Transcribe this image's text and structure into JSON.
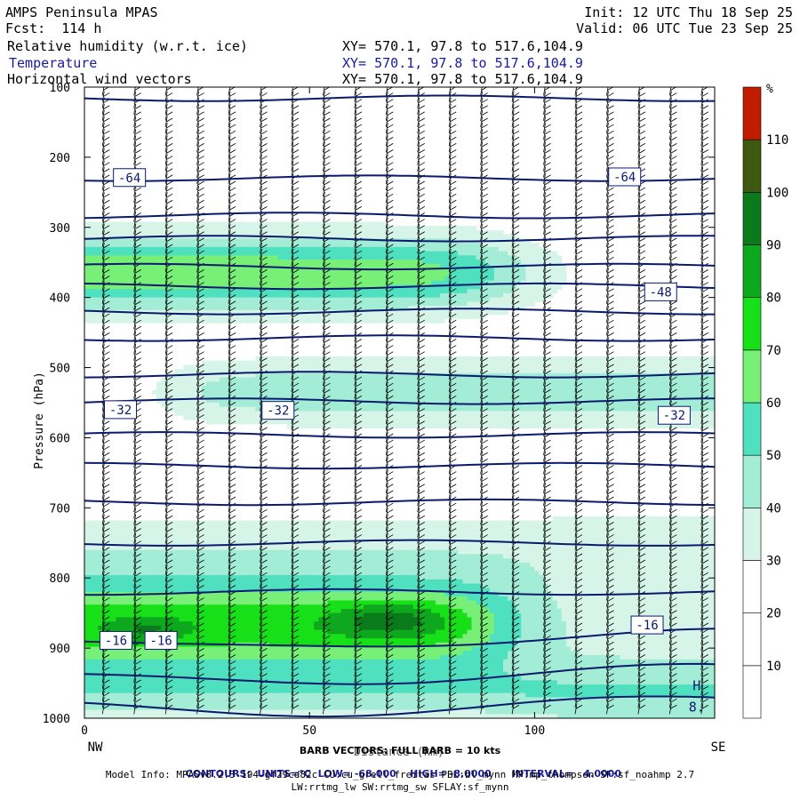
{
  "header": {
    "model": "AMPS Peninsula MPAS",
    "forecast": "Fcst:  114 h",
    "init": "Init: 12 UTC Thu 18 Sep 25",
    "valid": "Valid: 06 UTC Tue 23 Sep 25",
    "field1": "Relative humidity (w.r.t. ice)",
    "field2": "Temperature",
    "field3": "Horizontal wind vectors",
    "xy1": "XY= 570.1, 97.8 to 517.6,104.9",
    "xy2": "XY= 570.1, 97.8 to 517.6,104.9",
    "xy3": "XY= 570.1, 97.8 to 517.6,104.9"
  },
  "colors": {
    "temperature_contour": "#0a1a6e",
    "rh_bins": [
      "#ffffff",
      "#ffffff",
      "#ffffff",
      "#d6f5e8",
      "#a3ecd6",
      "#4fe0c0",
      "#78f078",
      "#18e018",
      "#0ea81e",
      "#0b7a1a",
      "#3e5a10",
      "#c01c00"
    ]
  },
  "chart_data": {
    "type": "heatmap",
    "title": "",
    "xlabel": "Distance (km)",
    "ylabel": "Pressure (hPa)",
    "xlim": [
      0,
      140
    ],
    "ylim": [
      1000,
      100
    ],
    "x_ticks": [
      "0",
      "50",
      "100"
    ],
    "y_ticks": [
      "100",
      "200",
      "300",
      "400",
      "500",
      "600",
      "700",
      "800",
      "900",
      "1000"
    ],
    "x_ends": [
      "NW",
      "SE"
    ],
    "colorbar": {
      "unit": "%",
      "levels": [
        "10",
        "20",
        "30",
        "40",
        "50",
        "60",
        "70",
        "80",
        "90",
        "100",
        "110"
      ]
    },
    "temperature_labels": [
      {
        "text": "-64",
        "x": 10,
        "p": 229
      },
      {
        "text": "-64",
        "x": 120,
        "p": 228
      },
      {
        "text": "-48",
        "x": 128,
        "p": 392
      },
      {
        "text": "-32",
        "x": 8,
        "p": 560
      },
      {
        "text": "-32",
        "x": 43,
        "p": 561
      },
      {
        "text": "-32",
        "x": 131,
        "p": 568
      },
      {
        "text": "-16",
        "x": 7,
        "p": 889
      },
      {
        "text": "-16",
        "x": 17,
        "p": 889
      },
      {
        "text": "-16",
        "x": 125,
        "p": 867
      }
    ],
    "temperature_contours_p": [
      116,
      230,
      283,
      316,
      356,
      384,
      420,
      458,
      510,
      548,
      596,
      640,
      692,
      750,
      820,
      888,
      938,
      982
    ],
    "high_marker": {
      "letter": "H",
      "value": "8.",
      "x": 136,
      "p": 960
    },
    "barb_columns_x": [
      4,
      11,
      18,
      25,
      32,
      39,
      46,
      53,
      60,
      67,
      74,
      81,
      88,
      95,
      102,
      109,
      116,
      123,
      130,
      137
    ],
    "barb_legend": "BARB VECTORS: FULL BARB = 10 kts",
    "contours_info": {
      "units": "CONTOURS:  UNITS=°C",
      "low": "LOW= -68.000",
      "high": "HIGH= -8.0000",
      "interval": "INTERVAL=   4.0000"
    }
  },
  "footer": {
    "model_info": "Model Info: MPASv8.2.3-194-gf29cd82c CU:cu_grell_freitas PBL:bl_mynn MP:mp_thompson SF:sf_noahmp 2.7",
    "model_info2": "LW:rrtmg_lw SW:rrtmg_sw SFLAY:sf_mynn"
  }
}
